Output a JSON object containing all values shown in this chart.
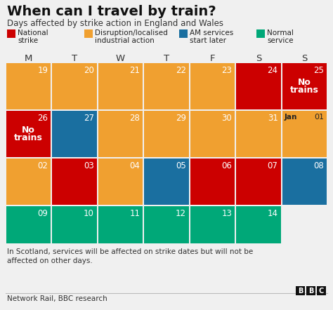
{
  "title": "When can I travel by train?",
  "subtitle": "Days affected by strike action in England and Wales",
  "background_color": "#f0f0f0",
  "day_headers": [
    "M",
    "T",
    "W",
    "T",
    "F",
    "S",
    "S"
  ],
  "legend": [
    {
      "label": "National\nstrike",
      "color": "#cc0000"
    },
    {
      "label": "Disruption/localised\nindustrial action",
      "color": "#f0a030"
    },
    {
      "label": "AM services\nstart later",
      "color": "#1a6fa0"
    },
    {
      "label": "Normal\nservice",
      "color": "#00a878"
    }
  ],
  "calendar": [
    [
      {
        "day": "19",
        "color": "#f0a030",
        "note": ""
      },
      {
        "day": "20",
        "color": "#f0a030",
        "note": ""
      },
      {
        "day": "21",
        "color": "#f0a030",
        "note": ""
      },
      {
        "day": "22",
        "color": "#f0a030",
        "note": ""
      },
      {
        "day": "23",
        "color": "#f0a030",
        "note": ""
      },
      {
        "day": "24",
        "color": "#cc0000",
        "note": ""
      },
      {
        "day": "25",
        "color": "#cc0000",
        "note": "No\ntrains"
      }
    ],
    [
      {
        "day": "26",
        "color": "#cc0000",
        "note": "No\ntrains"
      },
      {
        "day": "27",
        "color": "#1a6fa0",
        "note": ""
      },
      {
        "day": "28",
        "color": "#f0a030",
        "note": ""
      },
      {
        "day": "29",
        "color": "#f0a030",
        "note": ""
      },
      {
        "day": "30",
        "color": "#f0a030",
        "note": ""
      },
      {
        "day": "31",
        "color": "#f0a030",
        "note": ""
      },
      {
        "day": "Jan 01",
        "color": "#f0a030",
        "note": "",
        "jan": true
      }
    ],
    [
      {
        "day": "02",
        "color": "#f0a030",
        "note": ""
      },
      {
        "day": "03",
        "color": "#cc0000",
        "note": ""
      },
      {
        "day": "04",
        "color": "#f0a030",
        "note": ""
      },
      {
        "day": "05",
        "color": "#1a6fa0",
        "note": ""
      },
      {
        "day": "06",
        "color": "#cc0000",
        "note": ""
      },
      {
        "day": "07",
        "color": "#cc0000",
        "note": ""
      },
      {
        "day": "08",
        "color": "#1a6fa0",
        "note": ""
      }
    ],
    [
      {
        "day": "09",
        "color": "#00a878",
        "note": ""
      },
      {
        "day": "10",
        "color": "#00a878",
        "note": ""
      },
      {
        "day": "11",
        "color": "#00a878",
        "note": ""
      },
      {
        "day": "12",
        "color": "#00a878",
        "note": ""
      },
      {
        "day": "13",
        "color": "#00a878",
        "note": ""
      },
      {
        "day": "14",
        "color": "#00a878",
        "note": ""
      },
      {
        "day": "",
        "color": "#f0f0f0",
        "note": ""
      }
    ]
  ],
  "footnote": "In Scotland, services will be affected on strike dates but will not be\naffected on other days.",
  "source": "Network Rail, BBC research"
}
